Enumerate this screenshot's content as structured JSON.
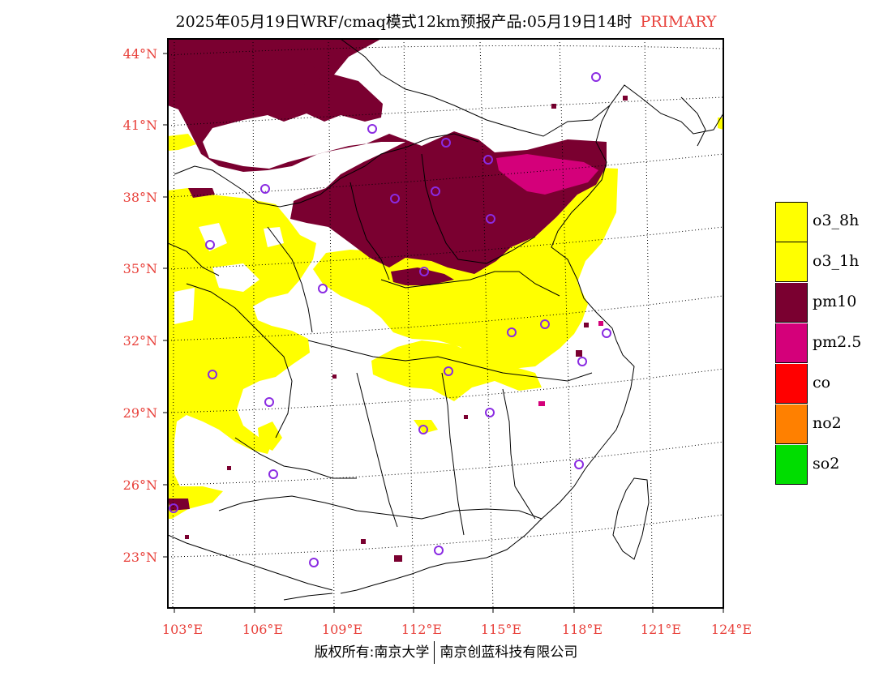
{
  "title": {
    "text": "2025年05月19日WRF/cmaq模式12km预报产品:05月19日14时",
    "primary": "PRIMARY"
  },
  "axes": {
    "lat_labels": [
      "44°N",
      "41°N",
      "38°N",
      "35°N",
      "32°N",
      "29°N",
      "26°N",
      "23°N"
    ],
    "lon_labels": [
      "103°E",
      "106°E",
      "109°E",
      "112°E",
      "115°E",
      "118°E",
      "121°E",
      "124°E"
    ],
    "label_color": "#e8403a"
  },
  "legend": [
    {
      "label": "o3_8h",
      "color": "#ffff00"
    },
    {
      "label": "o3_1h",
      "color": "#ffff00"
    },
    {
      "label": "pm10",
      "color": "#7a0030"
    },
    {
      "label": "pm2.5",
      "color": "#d4007a"
    },
    {
      "label": "co",
      "color": "#ff0000"
    },
    {
      "label": "no2",
      "color": "#ff8000"
    },
    {
      "label": "so2",
      "color": "#00dd00"
    }
  ],
  "colors": {
    "o3": "#ffff00",
    "pm10": "#7a0030",
    "pm25": "#d4007a",
    "station_marker": "#8a2be2"
  },
  "copyright": {
    "left": "版权所有:南京大学",
    "right": "南京创蓝科技有限公司"
  }
}
